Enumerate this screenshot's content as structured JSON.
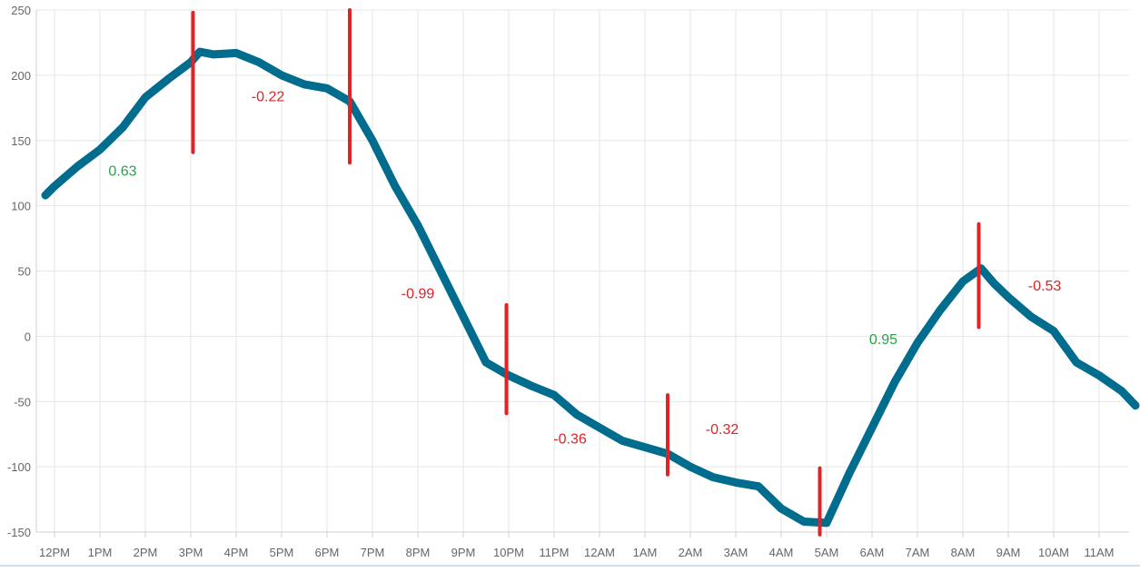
{
  "chart_data": {
    "type": "line",
    "title": "",
    "xlabel": "",
    "ylabel": "",
    "x_tick_labels": [
      "12PM",
      "1PM",
      "2PM",
      "3PM",
      "4PM",
      "5PM",
      "6PM",
      "7PM",
      "8PM",
      "9PM",
      "10PM",
      "11PM",
      "12AM",
      "1AM",
      "2AM",
      "3AM",
      "4AM",
      "5AM",
      "6AM",
      "7AM",
      "8AM",
      "9AM",
      "10AM",
      "11AM"
    ],
    "y_tick_labels": [
      "250",
      "200",
      "150",
      "100",
      "50",
      "0",
      "-50",
      "-100",
      "-150"
    ],
    "y_ticks": [
      250,
      200,
      150,
      100,
      50,
      0,
      -50,
      -100,
      -150
    ],
    "ylim": [
      -150,
      250
    ],
    "xlim": [
      -0.25,
      23.8
    ],
    "grid": true,
    "series": [
      {
        "color": "#006c8e",
        "x_hours_after_12PM": [
          -0.2,
          0,
          0.5,
          1,
          1.5,
          2,
          2.5,
          3,
          3.2,
          3.5,
          4,
          4.5,
          5,
          5.5,
          6,
          6.5,
          7,
          7.5,
          8,
          8.5,
          9,
          9.5,
          10,
          10.5,
          11,
          11.5,
          12,
          12.5,
          13,
          13.5,
          14,
          14.5,
          15,
          15.5,
          16,
          16.5,
          17,
          17.5,
          18,
          18.5,
          19,
          19.5,
          20,
          20.4,
          20.7,
          21,
          21.5,
          22,
          22.5,
          23,
          23.5,
          23.8
        ],
        "y": [
          108,
          115,
          130,
          143,
          160,
          183,
          197,
          210,
          218,
          216,
          217,
          210,
          200,
          193,
          190,
          180,
          150,
          115,
          85,
          50,
          15,
          -20,
          -30,
          -38,
          -45,
          -60,
          -70,
          -80,
          -85,
          -90,
          -100,
          -108,
          -112,
          -115,
          -132,
          -142,
          -143,
          -105,
          -70,
          -35,
          -5,
          20,
          42,
          52,
          40,
          30,
          15,
          4,
          -20,
          -30,
          -42,
          -53
        ]
      }
    ],
    "markers": [
      {
        "x_hours_after_12PM": 3.05,
        "y_top": 248,
        "y_bottom": 141
      },
      {
        "x_hours_after_12PM": 6.5,
        "y_top": 250,
        "y_bottom": 133
      },
      {
        "x_hours_after_12PM": 9.95,
        "y_top": 24,
        "y_bottom": -59
      },
      {
        "x_hours_after_12PM": 13.5,
        "y_top": -45,
        "y_bottom": -106
      },
      {
        "x_hours_after_12PM": 16.85,
        "y_top": -101,
        "y_bottom": -152
      },
      {
        "x_hours_after_12PM": 20.35,
        "y_top": 86,
        "y_bottom": 7
      }
    ],
    "segment_labels": [
      {
        "text": "0.63",
        "color": "#2e9e4f",
        "x_hours_after_12PM": 1.5,
        "y": 123
      },
      {
        "text": "-0.22",
        "color": "#e12328",
        "x_hours_after_12PM": 4.7,
        "y": 180
      },
      {
        "text": "-0.99",
        "color": "#e12328",
        "x_hours_after_12PM": 8.0,
        "y": 29
      },
      {
        "text": "-0.36",
        "color": "#e12328",
        "x_hours_after_12PM": 11.35,
        "y": -82
      },
      {
        "text": "-0.32",
        "color": "#e12328",
        "x_hours_after_12PM": 14.7,
        "y": -75
      },
      {
        "text": "0.95",
        "color": "#2e9e4f",
        "x_hours_after_12PM": 18.25,
        "y": -6
      },
      {
        "text": "-0.53",
        "color": "#e12328",
        "x_hours_after_12PM": 21.8,
        "y": 35
      }
    ]
  }
}
